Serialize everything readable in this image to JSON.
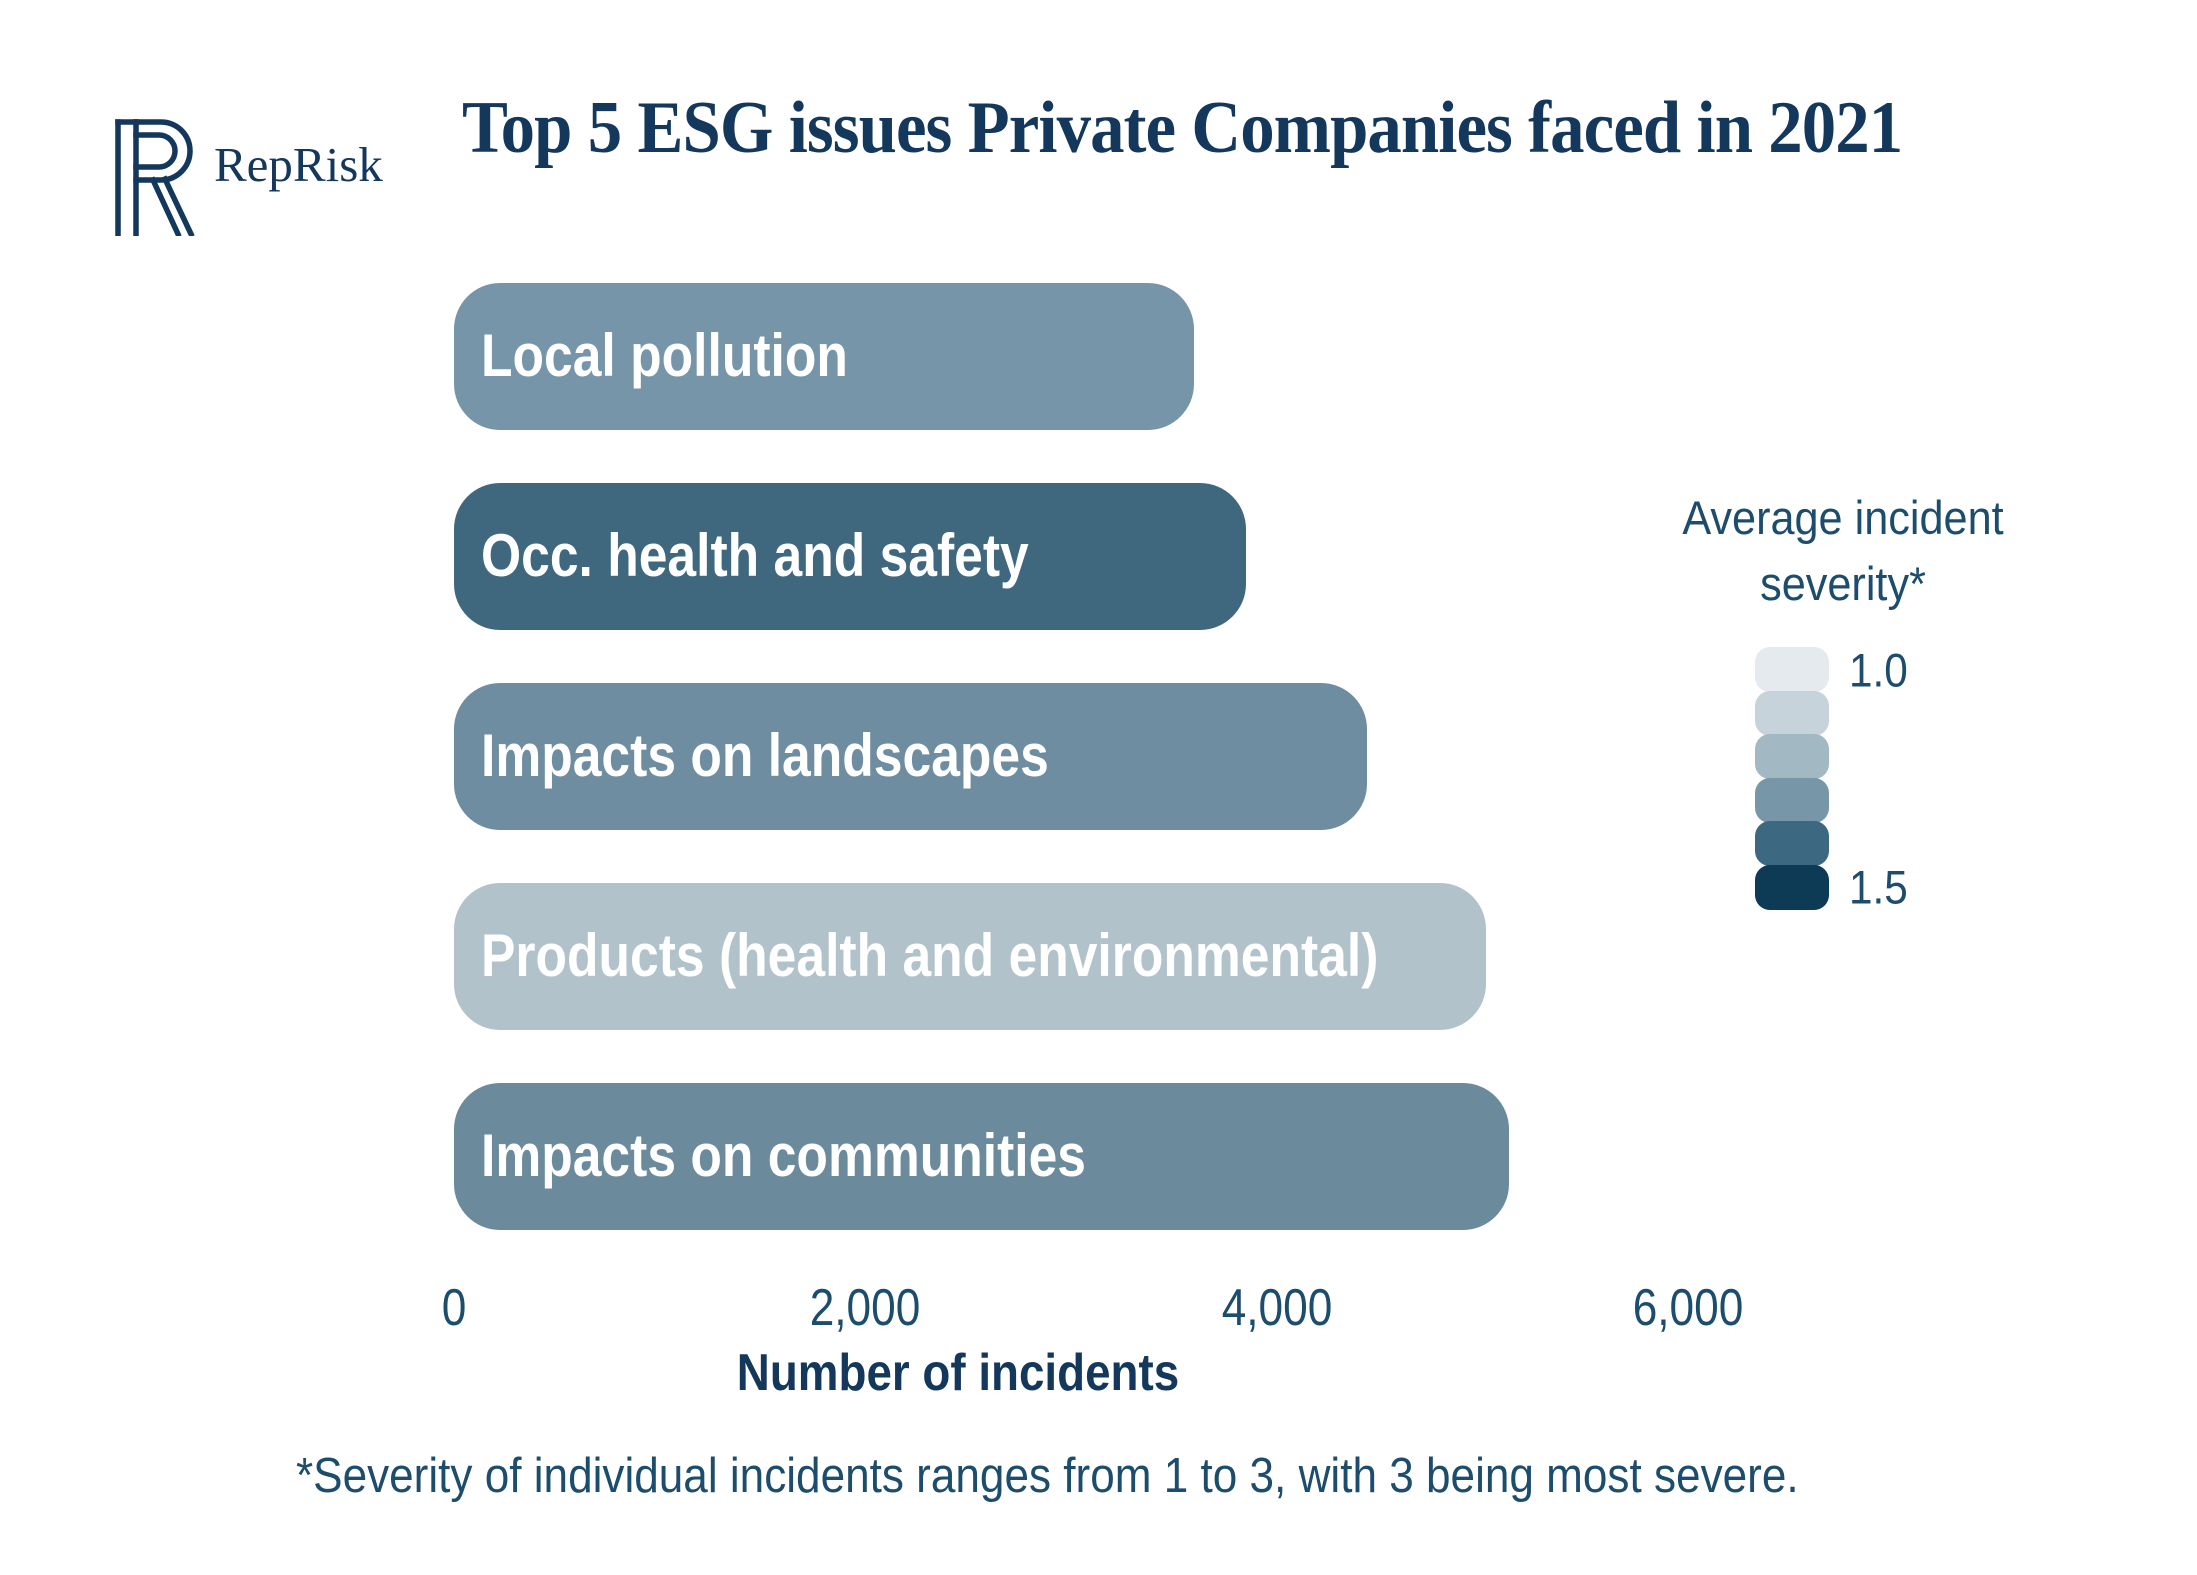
{
  "brand": {
    "name": "RepRisk"
  },
  "header": {
    "title": "Top 5 ESG issues Private Companies faced in 2021"
  },
  "footnote": "*Severity of individual incidents ranges from 1 to 3, with 3 being most severe.",
  "colors": {
    "background": "#ffffff",
    "navy": "#14375c",
    "teal_text": "#1d4d6c",
    "bar_label_text": "#ffffff"
  },
  "chart_data": {
    "type": "bar",
    "orientation": "horizontal",
    "title": "Top 5 ESG issues Private Companies faced in 2021",
    "xlabel": "Number of incidents",
    "xlim": [
      0,
      6000
    ],
    "x_ticks": [
      {
        "label": "0",
        "value": 0
      },
      {
        "label": "2,000",
        "value": 2000
      },
      {
        "label": "4,000",
        "value": 4000
      },
      {
        "label": "6,000",
        "value": 6000
      }
    ],
    "grid": false,
    "legend_position": "right",
    "series": [
      {
        "category": "Local pollution",
        "value": 3600,
        "color": "#7695a8"
      },
      {
        "category": "Occ. health and safety",
        "value": 3850,
        "color": "#3f687f"
      },
      {
        "category": "Impacts on landscapes",
        "value": 4440,
        "color": "#6f8da0"
      },
      {
        "category": "Products (health and environmental)",
        "value": 5020,
        "color": "#b2c2cb"
      },
      {
        "category": "Impacts on communities",
        "value": 5130,
        "color": "#6b8b9d"
      }
    ],
    "legend": {
      "title_line1": "Average incident",
      "title_line2": "severity*",
      "min_label": "1.0",
      "max_label": "1.5",
      "swatch_colors": [
        "#e4eaee",
        "#c7d3da",
        "#a2b8c3",
        "#7797a8",
        "#3c6981",
        "#0d3a55"
      ]
    }
  }
}
